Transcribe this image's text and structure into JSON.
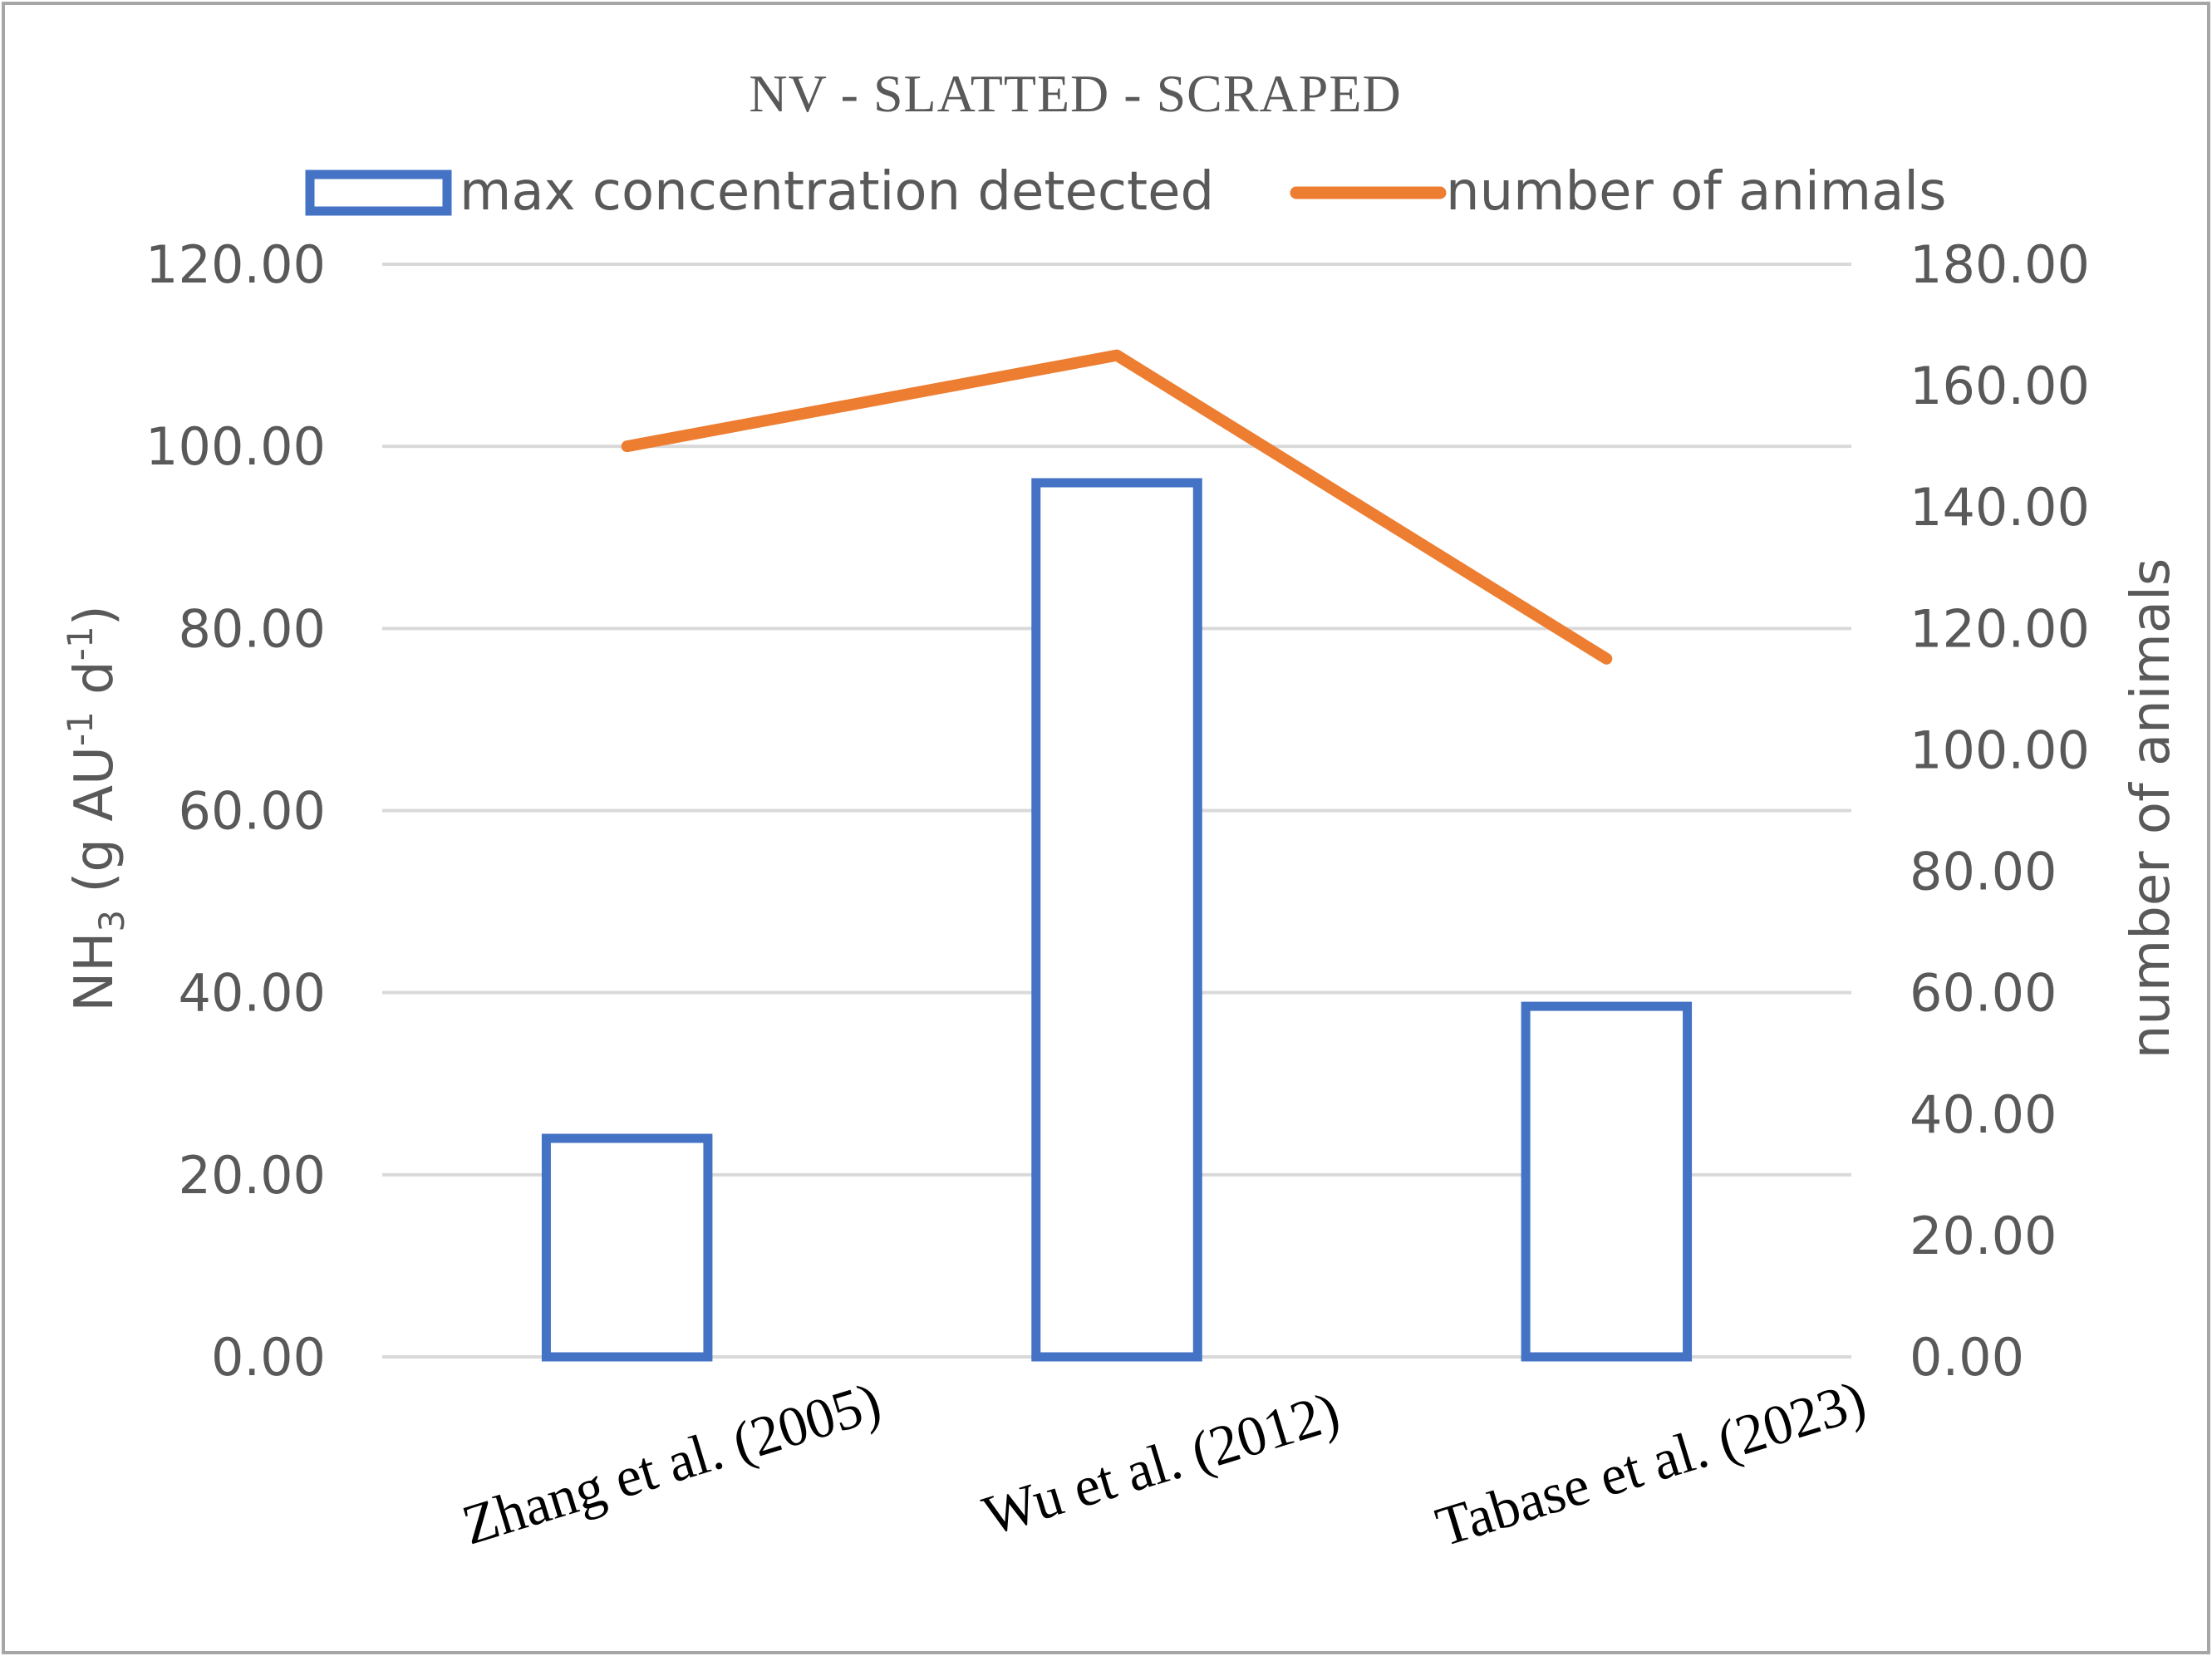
{
  "chart_data": {
    "type": "bar",
    "title": "NV -  SLATTED - SCRAPED",
    "categories": [
      "Zhang et al. (2005)",
      "Wu et al. (2012)",
      "Tabase et al. (2023)"
    ],
    "series": [
      {
        "name": "max concentration detected",
        "type": "bar",
        "axis": "left",
        "color": "#4472C4",
        "values": [
          24.0,
          96.0,
          38.5
        ]
      },
      {
        "name": "number of animals",
        "type": "line",
        "axis": "right",
        "color": "#ED7D31",
        "values": [
          150,
          165,
          115
        ]
      }
    ],
    "ylabel": {
      "prefix": "NH",
      "sub": "3",
      "mid1": " (g AU",
      "sup1": "-1",
      "mid2": " d",
      "sup2": "-1",
      "suffix": ")"
    },
    "y2label": "number of animals",
    "ylim": [
      0,
      120
    ],
    "y2lim": [
      0,
      180
    ],
    "yticks": [
      "0.00",
      "20.00",
      "40.00",
      "60.00",
      "80.00",
      "100.00",
      "120.00"
    ],
    "y2ticks": [
      "0.00",
      "20.00",
      "40.00",
      "60.00",
      "80.00",
      "100.00",
      "120.00",
      "140.00",
      "160.00",
      "180.00"
    ],
    "grid": true,
    "legend_position": "top"
  }
}
